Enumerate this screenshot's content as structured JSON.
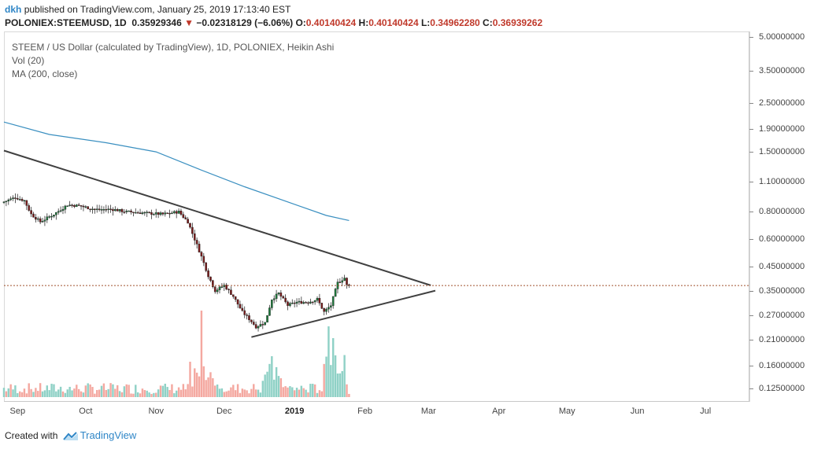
{
  "header": {
    "user": "dkh",
    "published_text": "published on TradingView.com, January 25, 2019 17:13:40 EST",
    "symbol": "POLONIEX:STEEMUSD, 1D",
    "last": "0.35929346",
    "change": "−0.02318129 (−6.06%)",
    "o_label": "O:",
    "o_value": "0.40140424",
    "h_label": "H:",
    "h_value": "0.40140424",
    "l_label": "L:",
    "l_value": "0.34962280",
    "c_label": "C:",
    "c_value": "0.36939262"
  },
  "legend": {
    "title": "STEEM / US Dollar (calculated by TradingView), 1D, POLONIEX, Heikin Ashi",
    "vol": "Vol (20)",
    "ma": "MA (200, close)"
  },
  "footer": {
    "created_with": "Created with",
    "brand": "TradingView"
  },
  "colors": {
    "up": "#26a69a",
    "up_candle": "#1e7a3c",
    "down_candle": "#7a1b1b",
    "vol_up": "#8fd1c6",
    "vol_down": "#f4a8a0",
    "ma": "#3a8fc0",
    "trendline": "#404040",
    "price_line": "#a0522d"
  },
  "chart_data": {
    "type": "candlestick",
    "title": "STEEM / US Dollar (calculated by TradingView), 1D, POLONIEX, Heikin Ashi",
    "y_scale": "log",
    "y_ticks": [
      "5.00000000",
      "3.50000000",
      "2.50000000",
      "1.90000000",
      "1.50000000",
      "1.10000000",
      "0.80000000",
      "0.60000000",
      "0.45000000",
      "0.35000000",
      "0.27000000",
      "0.21000000",
      "0.16000000",
      "0.12500000"
    ],
    "x_ticks": [
      "Sep",
      "Oct",
      "Nov",
      "Dec",
      "2019",
      "Feb",
      "Mar",
      "Apr",
      "May",
      "Jun",
      "Jul"
    ],
    "x_range": [
      "2018-08-26",
      "2019-07-20"
    ],
    "y_range": [
      0.11,
      5.3
    ],
    "last_price": 0.3693,
    "price_points": [
      [
        "2018-08-26",
        0.88
      ],
      [
        "2018-09-01",
        0.93
      ],
      [
        "2018-09-05",
        0.9
      ],
      [
        "2018-09-08",
        0.78
      ],
      [
        "2018-09-12",
        0.72
      ],
      [
        "2018-09-18",
        0.78
      ],
      [
        "2018-09-24",
        0.86
      ],
      [
        "2018-09-30",
        0.85
      ],
      [
        "2018-10-06",
        0.82
      ],
      [
        "2018-10-14",
        0.82
      ],
      [
        "2018-10-20",
        0.8
      ],
      [
        "2018-10-28",
        0.79
      ],
      [
        "2018-11-05",
        0.78
      ],
      [
        "2018-11-12",
        0.8
      ],
      [
        "2018-11-16",
        0.72
      ],
      [
        "2018-11-19",
        0.6
      ],
      [
        "2018-11-22",
        0.5
      ],
      [
        "2018-11-25",
        0.41
      ],
      [
        "2018-11-28",
        0.35
      ],
      [
        "2018-12-02",
        0.37
      ],
      [
        "2018-12-06",
        0.33
      ],
      [
        "2018-12-10",
        0.28
      ],
      [
        "2018-12-13",
        0.26
      ],
      [
        "2018-12-16",
        0.24
      ],
      [
        "2018-12-20",
        0.25
      ],
      [
        "2018-12-23",
        0.32
      ],
      [
        "2018-12-26",
        0.34
      ],
      [
        "2018-12-30",
        0.3
      ],
      [
        "2019-01-03",
        0.31
      ],
      [
        "2019-01-08",
        0.31
      ],
      [
        "2019-01-12",
        0.32
      ],
      [
        "2019-01-15",
        0.28
      ],
      [
        "2019-01-18",
        0.3
      ],
      [
        "2019-01-21",
        0.38
      ],
      [
        "2019-01-24",
        0.4
      ],
      [
        "2019-01-25",
        0.37
      ]
    ],
    "ma200_points": [
      [
        "2018-08-26",
        2.05
      ],
      [
        "2018-09-15",
        1.8
      ],
      [
        "2018-10-10",
        1.65
      ],
      [
        "2018-11-01",
        1.5
      ],
      [
        "2018-11-20",
        1.25
      ],
      [
        "2018-12-10",
        1.04
      ],
      [
        "2018-12-30",
        0.88
      ],
      [
        "2019-01-15",
        0.77
      ],
      [
        "2019-01-25",
        0.73
      ]
    ],
    "trendlines": [
      {
        "name": "descending",
        "from": [
          "2018-08-26",
          1.52
        ],
        "to": [
          "2019-03-02",
          0.37
        ]
      },
      {
        "name": "ascending",
        "from": [
          "2018-12-13",
          0.215
        ],
        "to": [
          "2019-03-04",
          0.35
        ]
      }
    ],
    "volume_note": "Vol (20) histogram, spikes in late Nov 2018 and mid Jan 2019"
  }
}
